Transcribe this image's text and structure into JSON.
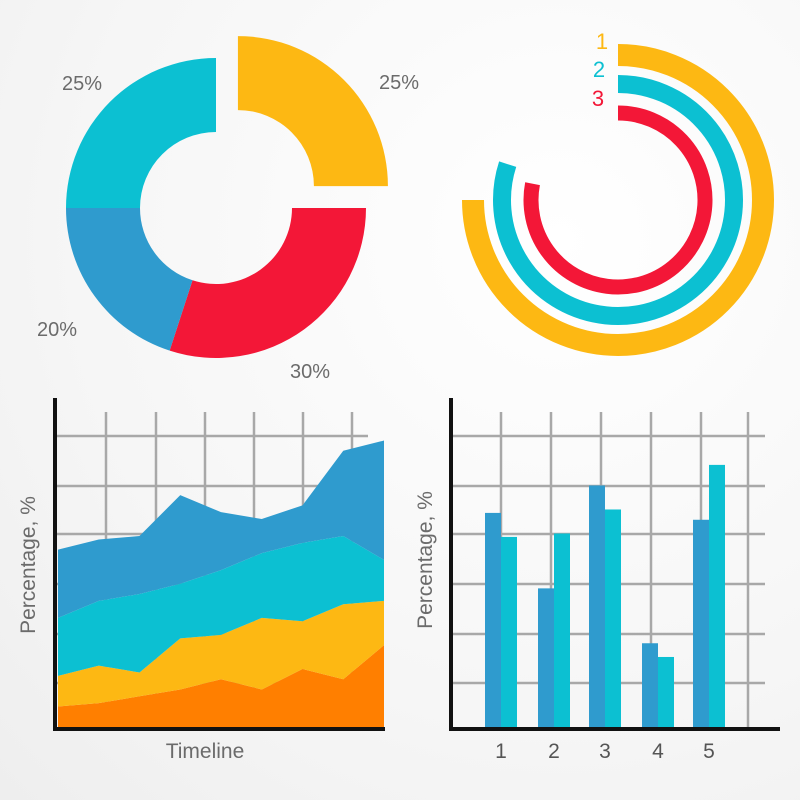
{
  "chart_data": [
    {
      "type": "pie",
      "style": "donut-exploded",
      "slices": [
        {
          "label": "25%",
          "value": 25,
          "color": "#FDB813"
        },
        {
          "label": "30%",
          "value": 30,
          "color": "#F31737"
        },
        {
          "label": "20%",
          "value": 20,
          "color": "#2F9BCE"
        },
        {
          "label": "25%",
          "value": 25,
          "color": "#0CC0D2"
        }
      ]
    },
    {
      "type": "pie",
      "style": "radial-rings",
      "rings": [
        {
          "label": "1",
          "value": 75,
          "color": "#FDB813"
        },
        {
          "label": "2",
          "value": 80,
          "color": "#0CC0D2"
        },
        {
          "label": "3",
          "value": 78,
          "color": "#F31737"
        }
      ]
    },
    {
      "type": "area",
      "stacked": true,
      "ylabel": "Percentage, %",
      "xlabel": "Timeline",
      "ylim": [
        0,
        100
      ],
      "grid": true,
      "x": [
        0,
        1,
        2,
        3,
        4,
        5,
        6,
        7,
        8
      ],
      "series": [
        {
          "color": "#FF7F00",
          "values": [
            6,
            7,
            9,
            11,
            14,
            11,
            17,
            14,
            24
          ]
        },
        {
          "color": "#FDB813",
          "values": [
            9,
            11,
            7,
            15,
            13,
            21,
            14,
            22,
            13
          ]
        },
        {
          "color": "#0CC0D2",
          "values": [
            17,
            19,
            23,
            16,
            19,
            19,
            23,
            20,
            12
          ]
        },
        {
          "color": "#2F9BCE",
          "values": [
            20,
            18,
            17,
            26,
            17,
            10,
            11,
            25,
            35
          ]
        }
      ]
    },
    {
      "type": "bar",
      "ylabel": "Percentage, %",
      "categories": [
        "1",
        "2",
        "3",
        "4",
        "5"
      ],
      "ylim": [
        0,
        100
      ],
      "grid": true,
      "series": [
        {
          "color": "#2F9BCE",
          "values": [
            63,
            41,
            71,
            25,
            61
          ]
        },
        {
          "color": "#0CC0D2",
          "values": [
            56,
            57,
            64,
            21,
            77
          ]
        }
      ]
    }
  ]
}
